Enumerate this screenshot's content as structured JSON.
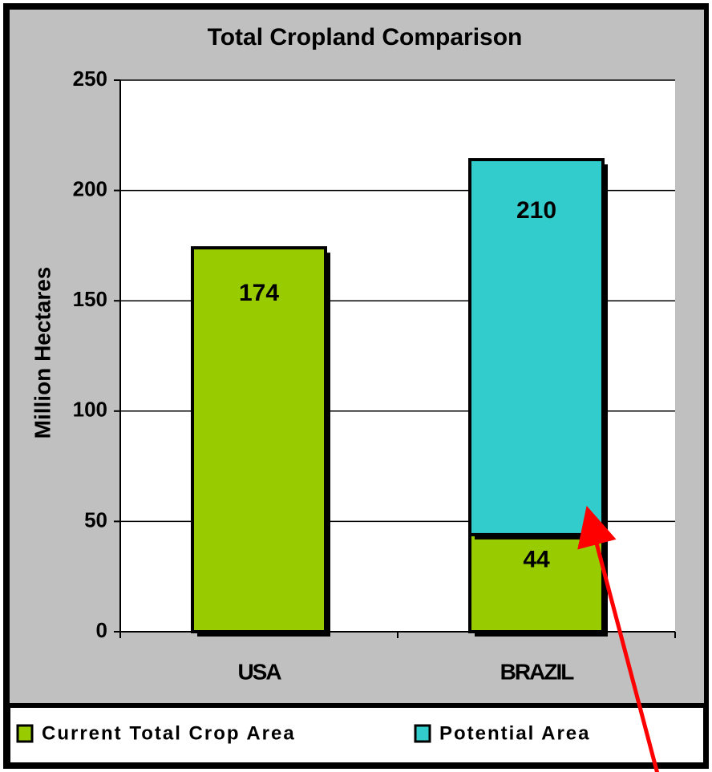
{
  "chart_data": {
    "type": "stacked_bar",
    "title": "Total Cropland Comparison",
    "y_label": "Million Hectares",
    "categories": [
      "USA",
      "BRAZIL"
    ],
    "series": [
      {
        "name": "Current Total Crop Area",
        "color": "#99cc00",
        "values": [
          174,
          44
        ]
      },
      {
        "name": "Potential Area",
        "color": "#33cccc",
        "values": [
          null,
          170
        ]
      }
    ],
    "annotations": [
      {
        "text": "210"
      }
    ],
    "ylim": [
      0,
      250
    ],
    "yticks": [
      0,
      50,
      100,
      150,
      200,
      250
    ],
    "grid": true,
    "legend": "bottom"
  }
}
